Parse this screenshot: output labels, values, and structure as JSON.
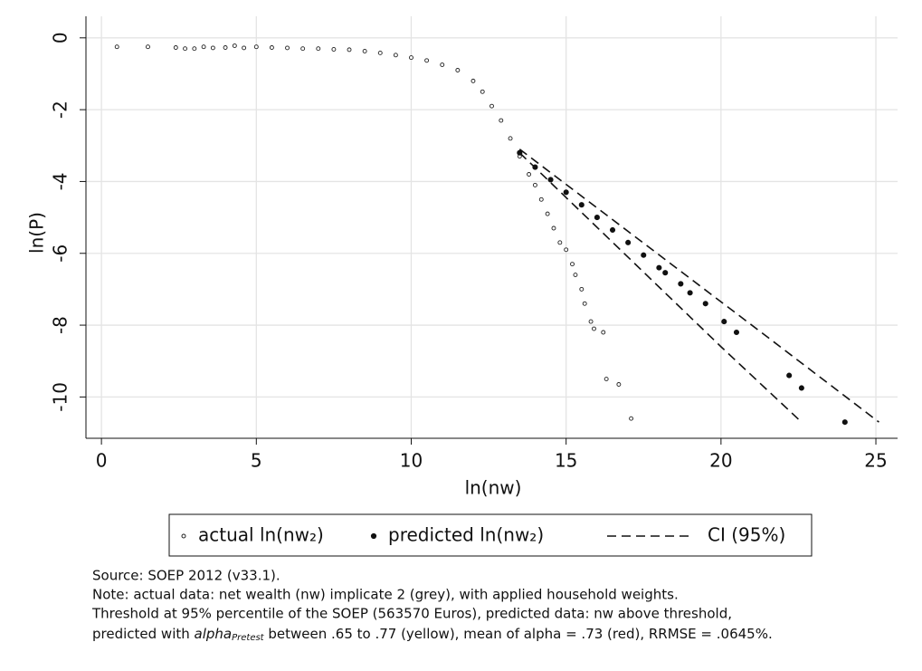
{
  "chart_data": {
    "type": "scatter",
    "xlabel": "ln(nw)",
    "ylabel": "ln(P)",
    "xlim": [
      -0.5,
      25.7
    ],
    "ylim": [
      -11.15,
      0.6
    ],
    "xticks": [
      0,
      5,
      10,
      15,
      20,
      25
    ],
    "yticks": [
      0,
      -2,
      -4,
      -6,
      -8,
      -10
    ],
    "grid": true,
    "series": [
      {
        "name": "actual ln(nw₂)",
        "color": "#222222",
        "marker": "hollow",
        "x": [
          0.5,
          1.5,
          2.4,
          2.7,
          3.0,
          3.3,
          3.6,
          4.0,
          4.3,
          4.6,
          5.0,
          5.5,
          6.0,
          6.5,
          7.0,
          7.5,
          8.0,
          8.5,
          9.0,
          9.5,
          10.0,
          10.5,
          11.0,
          11.5,
          12.0,
          12.3,
          12.6,
          12.9,
          13.2,
          13.5,
          13.8,
          14.0,
          14.2,
          14.4,
          14.6,
          14.8,
          15.0,
          15.2,
          15.3,
          15.5,
          15.6,
          15.8,
          15.9,
          16.2,
          16.3,
          16.7,
          17.1
        ],
        "values": [
          -0.25,
          -0.25,
          -0.27,
          -0.3,
          -0.3,
          -0.25,
          -0.28,
          -0.27,
          -0.22,
          -0.28,
          -0.25,
          -0.27,
          -0.28,
          -0.3,
          -0.3,
          -0.32,
          -0.33,
          -0.37,
          -0.42,
          -0.48,
          -0.55,
          -0.63,
          -0.75,
          -0.9,
          -1.2,
          -1.5,
          -1.9,
          -2.3,
          -2.8,
          -3.3,
          -3.8,
          -4.1,
          -4.5,
          -4.9,
          -5.3,
          -5.7,
          -5.9,
          -6.3,
          -6.6,
          -7.0,
          -7.4,
          -7.9,
          -8.1,
          -8.2,
          -9.5,
          -9.65,
          -10.6
        ]
      },
      {
        "name": "predicted ln(nw₂)",
        "color": "#111111",
        "marker": "filled",
        "x": [
          13.5,
          14.0,
          14.5,
          15.0,
          15.5,
          16.0,
          16.5,
          17.0,
          17.5,
          18.0,
          18.2,
          18.7,
          19.0,
          19.5,
          20.1,
          20.5,
          22.2,
          22.6,
          24.0
        ],
        "values": [
          -3.2,
          -3.6,
          -3.95,
          -4.3,
          -4.65,
          -5.0,
          -5.35,
          -5.7,
          -6.05,
          -6.4,
          -6.54,
          -6.85,
          -7.1,
          -7.4,
          -7.9,
          -8.2,
          -9.4,
          -9.75,
          -10.7
        ]
      },
      {
        "name": "CI (95%)",
        "color": "#111111",
        "marker": "dashed-line",
        "x": [
          13.5,
          21.3,
          25.1
        ],
        "values": [
          -3.1,
          -8.2,
          -10.7
        ]
      },
      {
        "name": null,
        "color": "#111111",
        "marker": "dashed-line",
        "x": [
          13.5,
          20.0,
          22.6
        ],
        "values": [
          -3.2,
          -8.6,
          -10.7
        ]
      }
    ],
    "notes": [
      "Source: SOEP 2012 (v33.1).",
      "Note: actual data: net wealth (nw) implicate 2 (grey), with applied household weights.",
      "Threshold at 95% percentile of the SOEP (563570 Euros), predicted data: nw above threshold,"
    ],
    "last_note": {
      "before": "predicted with ",
      "italic": "alpha",
      "subscript": "Pretest",
      "after": " between .65 to .77 (yellow), mean of alpha = .73 (red), RRMSE = .0645%."
    }
  }
}
